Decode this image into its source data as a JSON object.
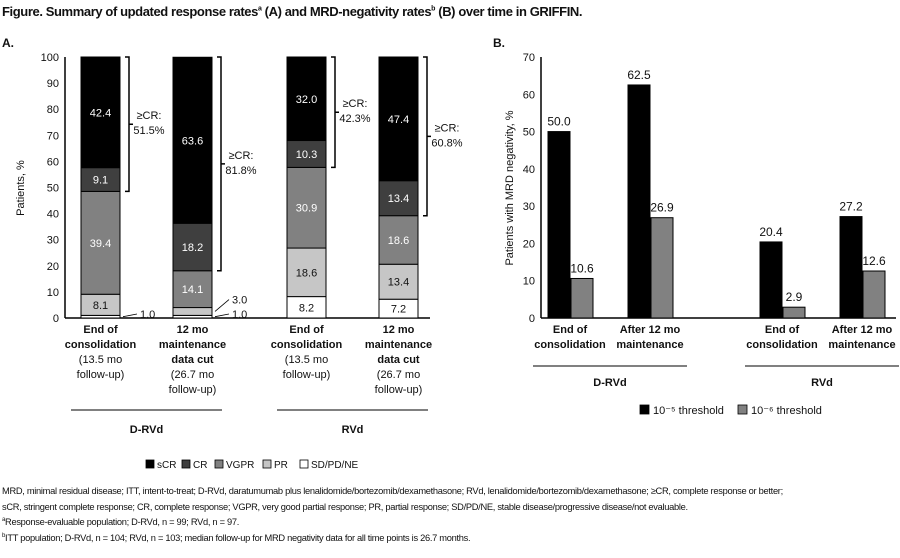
{
  "title": {
    "part1": "Figure. Summary of updated response rates",
    "sup1": "a",
    "part2": " (A) and MRD-negativity rates",
    "sup2": "b",
    "part3": " (B) over time in GRIFFIN."
  },
  "chart_data": [
    {
      "panel": "A.",
      "type": "bar",
      "stacked": true,
      "ylabel": "Patients, %",
      "ylim": [
        0,
        100
      ],
      "yticks": [
        "0",
        "10",
        "20",
        "30",
        "40",
        "50",
        "60",
        "70",
        "80",
        "90",
        "100"
      ],
      "categories": [
        {
          "lines": [
            "End of",
            "consolidation",
            "(13.5 mo",
            "follow-up)"
          ]
        },
        {
          "lines": [
            "12 mo",
            "maintenance",
            "data cut",
            "(26.7 mo",
            "follow-up)"
          ]
        },
        {
          "lines": [
            "End of",
            "consolidation",
            "(13.5 mo",
            "follow-up)"
          ]
        },
        {
          "lines": [
            "12 mo",
            "maintenance",
            "data cut",
            "(26.7 mo",
            "follow-up)"
          ]
        }
      ],
      "groups": [
        {
          "label": "D-RVd",
          "categories": [
            0,
            1
          ]
        },
        {
          "label": "RVd",
          "categories": [
            2,
            3
          ]
        }
      ],
      "series": [
        {
          "name": "SD/PD/NE",
          "color": "#ffffff",
          "values": [
            1.0,
            1.0,
            8.2,
            7.2
          ],
          "labels": [
            "1.0",
            "1.0",
            "8.2",
            "7.2"
          ]
        },
        {
          "name": "PR",
          "color": "#c6c6c6",
          "values": [
            8.1,
            3.0,
            18.6,
            13.4
          ],
          "labels": [
            "8.1",
            "3.0",
            "18.6",
            "13.4"
          ]
        },
        {
          "name": "VGPR",
          "color": "#818181",
          "values": [
            39.4,
            14.1,
            30.9,
            18.6
          ],
          "labels": [
            "39.4",
            "14.1",
            "30.9",
            "18.6"
          ]
        },
        {
          "name": "CR",
          "color": "#3f3f3f",
          "values": [
            9.1,
            18.2,
            10.3,
            13.4
          ],
          "labels": [
            "9.1",
            "18.2",
            "10.3",
            "13.4"
          ]
        },
        {
          "name": "sCR",
          "color": "#000000",
          "values": [
            42.4,
            63.6,
            32.0,
            47.4
          ],
          "labels": [
            "42.4",
            "63.6",
            "32.0",
            "47.4"
          ]
        }
      ],
      "brackets": [
        {
          "label1": "≥CR:",
          "label2": "51.5%"
        },
        {
          "label1": "≥CR:",
          "label2": "81.8%"
        },
        {
          "label1": "≥CR:",
          "label2": "42.3%"
        },
        {
          "label1": "≥CR:",
          "label2": "60.8%"
        }
      ],
      "legend": [
        "sCR",
        "CR",
        "VGPR",
        "PR",
        "SD/PD/NE"
      ],
      "legend_placement": "bottom"
    },
    {
      "panel": "B.",
      "type": "bar",
      "ylabel": "Patients with MRD negativity, %",
      "ylim": [
        0,
        70
      ],
      "yticks": [
        "0",
        "10",
        "20",
        "30",
        "40",
        "50",
        "60",
        "70"
      ],
      "categories": [
        {
          "lines": [
            "End of",
            "consolidation"
          ]
        },
        {
          "lines": [
            "After 12 mo",
            "maintenance"
          ]
        },
        {
          "lines": [
            "End of",
            "consolidation"
          ]
        },
        {
          "lines": [
            "After 12 mo",
            "maintenance"
          ]
        }
      ],
      "groups": [
        {
          "label": "D-RVd",
          "categories": [
            0,
            1
          ]
        },
        {
          "label": "RVd",
          "categories": [
            2,
            3
          ]
        }
      ],
      "series": [
        {
          "name": "10⁻⁵ threshold",
          "color": "#000000",
          "values": [
            50.0,
            62.5,
            20.4,
            27.2
          ],
          "labels": [
            "50.0",
            "62.5",
            "20.4",
            "27.2"
          ]
        },
        {
          "name": "10⁻⁶ threshold",
          "color": "#818181",
          "values": [
            10.6,
            26.9,
            2.9,
            12.6
          ],
          "labels": [
            "10.6",
            "26.9",
            "2.9",
            "12.6"
          ]
        }
      ],
      "legend_placement": "bottom"
    }
  ],
  "footnotes": {
    "abbrev1": "MRD, minimal residual disease; ITT, intent-to-treat; D-RVd, daratumumab plus lenalidomide/bortezomib/dexamethasone; RVd, lenalidomide/bortezomib/dexamethasone; ≥CR, complete response or better;",
    "abbrev2": "sCR, stringent complete response; CR, complete response; VGPR, very good partial response; PR, partial response; SD/PD/NE, stable disease/progressive disease/not evaluable.",
    "a_sup": "a",
    "a_text": "Response-evaluable population; D-RVd, n = 99; RVd, n = 97.",
    "b_sup": "b",
    "b_text": "ITT population; D-RVd, n = 104; RVd, n = 103; median follow-up for MRD negativity data for all time points is 26.7 months."
  }
}
